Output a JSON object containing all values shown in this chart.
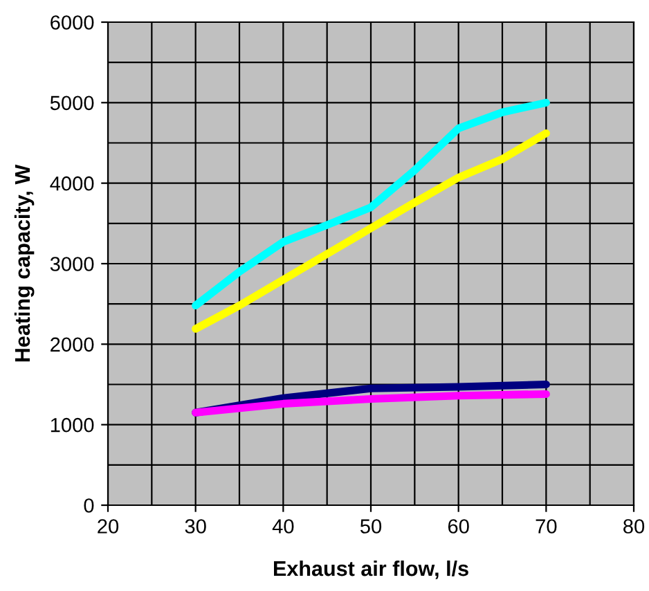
{
  "chart_data": {
    "type": "line",
    "xlabel": "Exhaust air flow, l/s",
    "ylabel": "Heating capacity, W",
    "xlim": [
      20,
      80
    ],
    "xticks": [
      20,
      30,
      40,
      50,
      60,
      70,
      80
    ],
    "ylim": [
      0,
      6000
    ],
    "yticks": [
      0,
      1000,
      2000,
      3000,
      4000,
      5000,
      6000
    ],
    "grid": true,
    "marker": "none",
    "line_style": "solid",
    "series": [
      {
        "color": "#00ffff",
        "x": [
          30,
          35,
          40,
          45,
          50,
          55,
          60,
          65,
          70
        ],
        "values": [
          2480,
          2900,
          3270,
          3480,
          3700,
          4160,
          4680,
          4880,
          5000
        ]
      },
      {
        "color": "#ffff00",
        "x": [
          30,
          35,
          40,
          45,
          50,
          55,
          60,
          65,
          70
        ],
        "values": [
          2190,
          2480,
          2800,
          3120,
          3440,
          3760,
          4070,
          4300,
          4620
        ]
      },
      {
        "color": "#000080",
        "x": [
          30,
          40,
          50,
          60,
          70
        ],
        "values": [
          1150,
          1330,
          1450,
          1470,
          1500
        ]
      },
      {
        "color": "#ff00ff",
        "x": [
          30,
          40,
          50,
          60,
          70
        ],
        "values": [
          1150,
          1260,
          1320,
          1360,
          1380
        ]
      }
    ]
  }
}
